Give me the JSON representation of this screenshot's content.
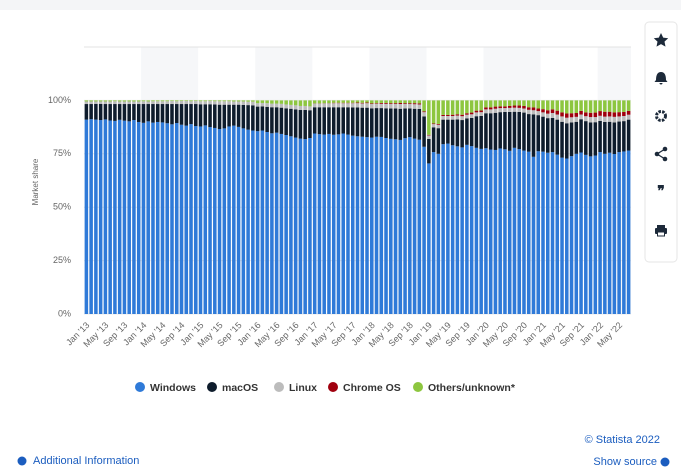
{
  "chart_data": {
    "type": "stacked_bar",
    "y_label": "Market share",
    "legend": "bottom",
    "copyright": "© Statista 2022",
    "additional_info": "Additional Information",
    "show_source": "Show source",
    "ylim": [
      0,
      125
    ],
    "yticks": [
      {
        "value": 0,
        "label": "0%"
      },
      {
        "value": 25,
        "label": "25%"
      },
      {
        "value": 50,
        "label": "50%"
      },
      {
        "value": 75,
        "label": "75%"
      },
      {
        "value": 100,
        "label": "100%"
      }
    ],
    "categories": [
      "Jan '13",
      null,
      null,
      null,
      "May '13",
      null,
      null,
      null,
      "Sep '13",
      null,
      null,
      null,
      "Jan '14",
      null,
      null,
      null,
      "May '14",
      null,
      null,
      null,
      "Sep '14",
      null,
      null,
      null,
      "Jan '15",
      null,
      null,
      null,
      "May '15",
      null,
      null,
      null,
      "Sep '15",
      null,
      null,
      null,
      "Jan '16",
      null,
      null,
      null,
      "May '16",
      null,
      null,
      null,
      "Sep '16",
      null,
      null,
      null,
      "Jan '17",
      null,
      null,
      null,
      "May '17",
      null,
      null,
      null,
      "Sep '17",
      null,
      null,
      null,
      "Jan '18",
      null,
      null,
      null,
      "May '18",
      null,
      null,
      null,
      "Sep '18",
      null,
      null,
      null,
      "Jan '19",
      null,
      null,
      null,
      "May '19",
      null,
      null,
      null,
      "Sep '19",
      null,
      null,
      null,
      "Jan '20",
      null,
      null,
      null,
      "May '20",
      null,
      null,
      null,
      "Sep '20",
      null,
      null,
      null,
      "Jan '21",
      null,
      null,
      null,
      "May '21",
      null,
      null,
      null,
      "Sep '21",
      null,
      null,
      null,
      "Jan '22",
      null,
      null,
      null,
      "May '22",
      null,
      null
    ],
    "series": [
      {
        "name": "Windows",
        "color": "#2f7ad8",
        "values": [
          91.0,
          91.2,
          91.0,
          90.8,
          91.1,
          90.6,
          90.4,
          90.9,
          90.5,
          90.2,
          90.8,
          89.9,
          89.5,
          90.2,
          89.6,
          89.9,
          89.7,
          89.3,
          88.8,
          89.4,
          88.6,
          88.2,
          88.9,
          88.0,
          87.8,
          88.3,
          87.5,
          87.1,
          86.6,
          86.9,
          87.8,
          88.2,
          87.6,
          86.9,
          86.3,
          85.9,
          85.6,
          85.9,
          85.2,
          84.6,
          84.9,
          84.3,
          83.8,
          83.2,
          82.6,
          82.1,
          81.9,
          82.4,
          84.5,
          84.2,
          84.0,
          84.3,
          83.9,
          84.1,
          84.5,
          84.0,
          83.5,
          83.2,
          83.0,
          82.8,
          82.6,
          83.0,
          82.9,
          82.4,
          82.0,
          81.8,
          81.5,
          82.3,
          82.8,
          82.1,
          81.6,
          78.3,
          70.5,
          75.8,
          75.0,
          79.5,
          79.8,
          79.0,
          78.5,
          78.0,
          79.2,
          78.6,
          77.8,
          77.3,
          77.6,
          77.0,
          76.8,
          77.5,
          77.1,
          76.4,
          77.8,
          77.2,
          76.5,
          76.0,
          73.6,
          76.2,
          76.0,
          75.5,
          75.8,
          74.6,
          73.2,
          72.8,
          73.9,
          75.0,
          75.6,
          74.5,
          73.8,
          74.2,
          75.8,
          75.0,
          75.5,
          74.9,
          75.8,
          76.1,
          76.5
        ]
      },
      {
        "name": "macOS",
        "color": "#0e1c2c",
        "values": [
          7.3,
          7.1,
          7.4,
          7.6,
          7.2,
          7.7,
          7.9,
          7.4,
          7.8,
          8.1,
          7.5,
          8.4,
          8.8,
          8.1,
          8.7,
          8.4,
          8.6,
          9.0,
          9.5,
          8.9,
          9.7,
          10.1,
          9.4,
          10.3,
          10.4,
          9.9,
          10.7,
          11.0,
          11.4,
          11.1,
          10.2,
          9.8,
          10.4,
          11.0,
          11.5,
          11.8,
          11.5,
          11.3,
          11.8,
          12.2,
          11.9,
          12.3,
          12.5,
          12.9,
          13.2,
          13.4,
          13.6,
          13.0,
          12.3,
          12.6,
          12.8,
          12.5,
          12.9,
          12.7,
          12.3,
          12.8,
          13.2,
          13.5,
          13.6,
          13.8,
          13.7,
          13.4,
          13.5,
          13.9,
          14.2,
          14.4,
          14.6,
          13.9,
          13.4,
          14.0,
          14.4,
          14.2,
          11.5,
          11.6,
          12.0,
          11.5,
          11.2,
          12.0,
          12.6,
          12.8,
          12.4,
          13.2,
          14.8,
          15.4,
          16.4,
          17.0,
          17.4,
          17.0,
          17.5,
          18.2,
          16.9,
          17.4,
          17.8,
          17.6,
          19.8,
          16.9,
          16.4,
          16.2,
          16.0,
          16.4,
          16.8,
          16.5,
          15.8,
          15.0,
          15.6,
          15.8,
          15.9,
          15.6,
          14.6,
          14.9,
          14.5,
          14.8,
          14.3,
          14.2,
          14.5
        ]
      },
      {
        "name": "Linux",
        "color": "#bcbcbc",
        "values": [
          1.2,
          1.2,
          1.1,
          1.1,
          1.2,
          1.2,
          1.3,
          1.2,
          1.2,
          1.2,
          1.2,
          1.2,
          1.3,
          1.2,
          1.3,
          1.3,
          1.3,
          1.3,
          1.4,
          1.3,
          1.4,
          1.4,
          1.3,
          1.4,
          1.4,
          1.4,
          1.5,
          1.5,
          1.6,
          1.6,
          1.6,
          1.5,
          1.5,
          1.6,
          1.6,
          1.7,
          1.6,
          1.6,
          1.7,
          1.7,
          1.7,
          1.8,
          1.8,
          1.8,
          1.9,
          1.9,
          1.9,
          1.8,
          1.7,
          1.7,
          1.8,
          1.8,
          1.9,
          1.9,
          1.9,
          1.9,
          2.0,
          2.0,
          2.0,
          2.1,
          2.0,
          2.0,
          2.0,
          2.1,
          2.1,
          2.1,
          2.2,
          2.1,
          2.1,
          2.1,
          2.1,
          2.0,
          1.6,
          1.5,
          1.6,
          1.7,
          1.7,
          1.7,
          1.8,
          1.8,
          1.7,
          1.7,
          1.8,
          1.8,
          1.8,
          1.8,
          1.9,
          1.9,
          1.8,
          1.9,
          1.9,
          1.9,
          1.9,
          2.0,
          2.0,
          1.9,
          2.0,
          2.1,
          2.3,
          2.4,
          2.5,
          2.6,
          2.4,
          2.3,
          2.2,
          2.3,
          2.5,
          2.4,
          2.4,
          2.5,
          2.5,
          2.6,
          2.4,
          2.4,
          2.3
        ]
      },
      {
        "name": "Chrome OS",
        "color": "#a0000e",
        "values": [
          0,
          0,
          0,
          0,
          0,
          0,
          0,
          0,
          0,
          0,
          0,
          0,
          0,
          0,
          0,
          0,
          0,
          0,
          0,
          0,
          0,
          0,
          0,
          0,
          0,
          0,
          0,
          0,
          0,
          0,
          0,
          0,
          0,
          0,
          0,
          0,
          0,
          0,
          0,
          0,
          0,
          0,
          0,
          0,
          0,
          0,
          0,
          0,
          0.1,
          0.1,
          0.1,
          0.1,
          0.2,
          0.2,
          0.2,
          0.2,
          0.2,
          0.3,
          0.3,
          0.3,
          0.3,
          0.3,
          0.4,
          0.4,
          0.4,
          0.4,
          0.5,
          0.4,
          0.4,
          0.5,
          0.5,
          0.4,
          0.3,
          0.3,
          0.4,
          0.5,
          0.5,
          0.6,
          0.6,
          0.7,
          0.7,
          0.8,
          0.8,
          0.8,
          0.9,
          0.9,
          1.0,
          0.8,
          0.8,
          0.9,
          1.0,
          1.1,
          1.2,
          1.2,
          1.3,
          1.2,
          1.5,
          1.6,
          1.7,
          1.8,
          1.9,
          2.0,
          1.9,
          1.8,
          1.7,
          1.8,
          2.0,
          2.1,
          2.2,
          2.3,
          2.2,
          2.1,
          2.0,
          1.9,
          1.8
        ]
      },
      {
        "name": "Others/unknown*",
        "color": "#8dc63f",
        "values": [
          0.5,
          0.5,
          0.5,
          0.5,
          0.5,
          0.5,
          0.4,
          0.5,
          0.5,
          0.5,
          0.5,
          0.5,
          0.4,
          0.5,
          0.4,
          0.4,
          0.4,
          0.4,
          0.3,
          0.4,
          0.3,
          0.3,
          0.4,
          0.3,
          0.4,
          0.4,
          0.3,
          0.4,
          0.4,
          0.4,
          0.4,
          0.5,
          0.5,
          0.5,
          0.6,
          0.6,
          1.3,
          1.2,
          1.3,
          1.5,
          1.5,
          1.6,
          1.9,
          2.1,
          2.3,
          2.6,
          2.6,
          2.8,
          1.4,
          1.4,
          1.3,
          1.3,
          1.1,
          1.1,
          1.1,
          1.1,
          1.1,
          1.0,
          1.1,
          1.0,
          1.4,
          1.3,
          1.2,
          1.2,
          1.3,
          1.3,
          1.2,
          1.3,
          1.3,
          1.3,
          1.4,
          5.1,
          16.1,
          10.8,
          11.0,
          6.8,
          6.8,
          6.7,
          6.5,
          6.7,
          6.0,
          5.7,
          4.8,
          4.7,
          3.3,
          3.3,
          2.9,
          2.8,
          2.8,
          2.6,
          2.4,
          2.4,
          2.6,
          3.2,
          3.3,
          3.8,
          4.1,
          4.6,
          4.2,
          4.8,
          5.6,
          6.1,
          6.0,
          5.9,
          4.9,
          5.6,
          5.8,
          5.7,
          5.0,
          5.3,
          5.3,
          5.6,
          5.5,
          5.4,
          4.9
        ]
      }
    ]
  }
}
